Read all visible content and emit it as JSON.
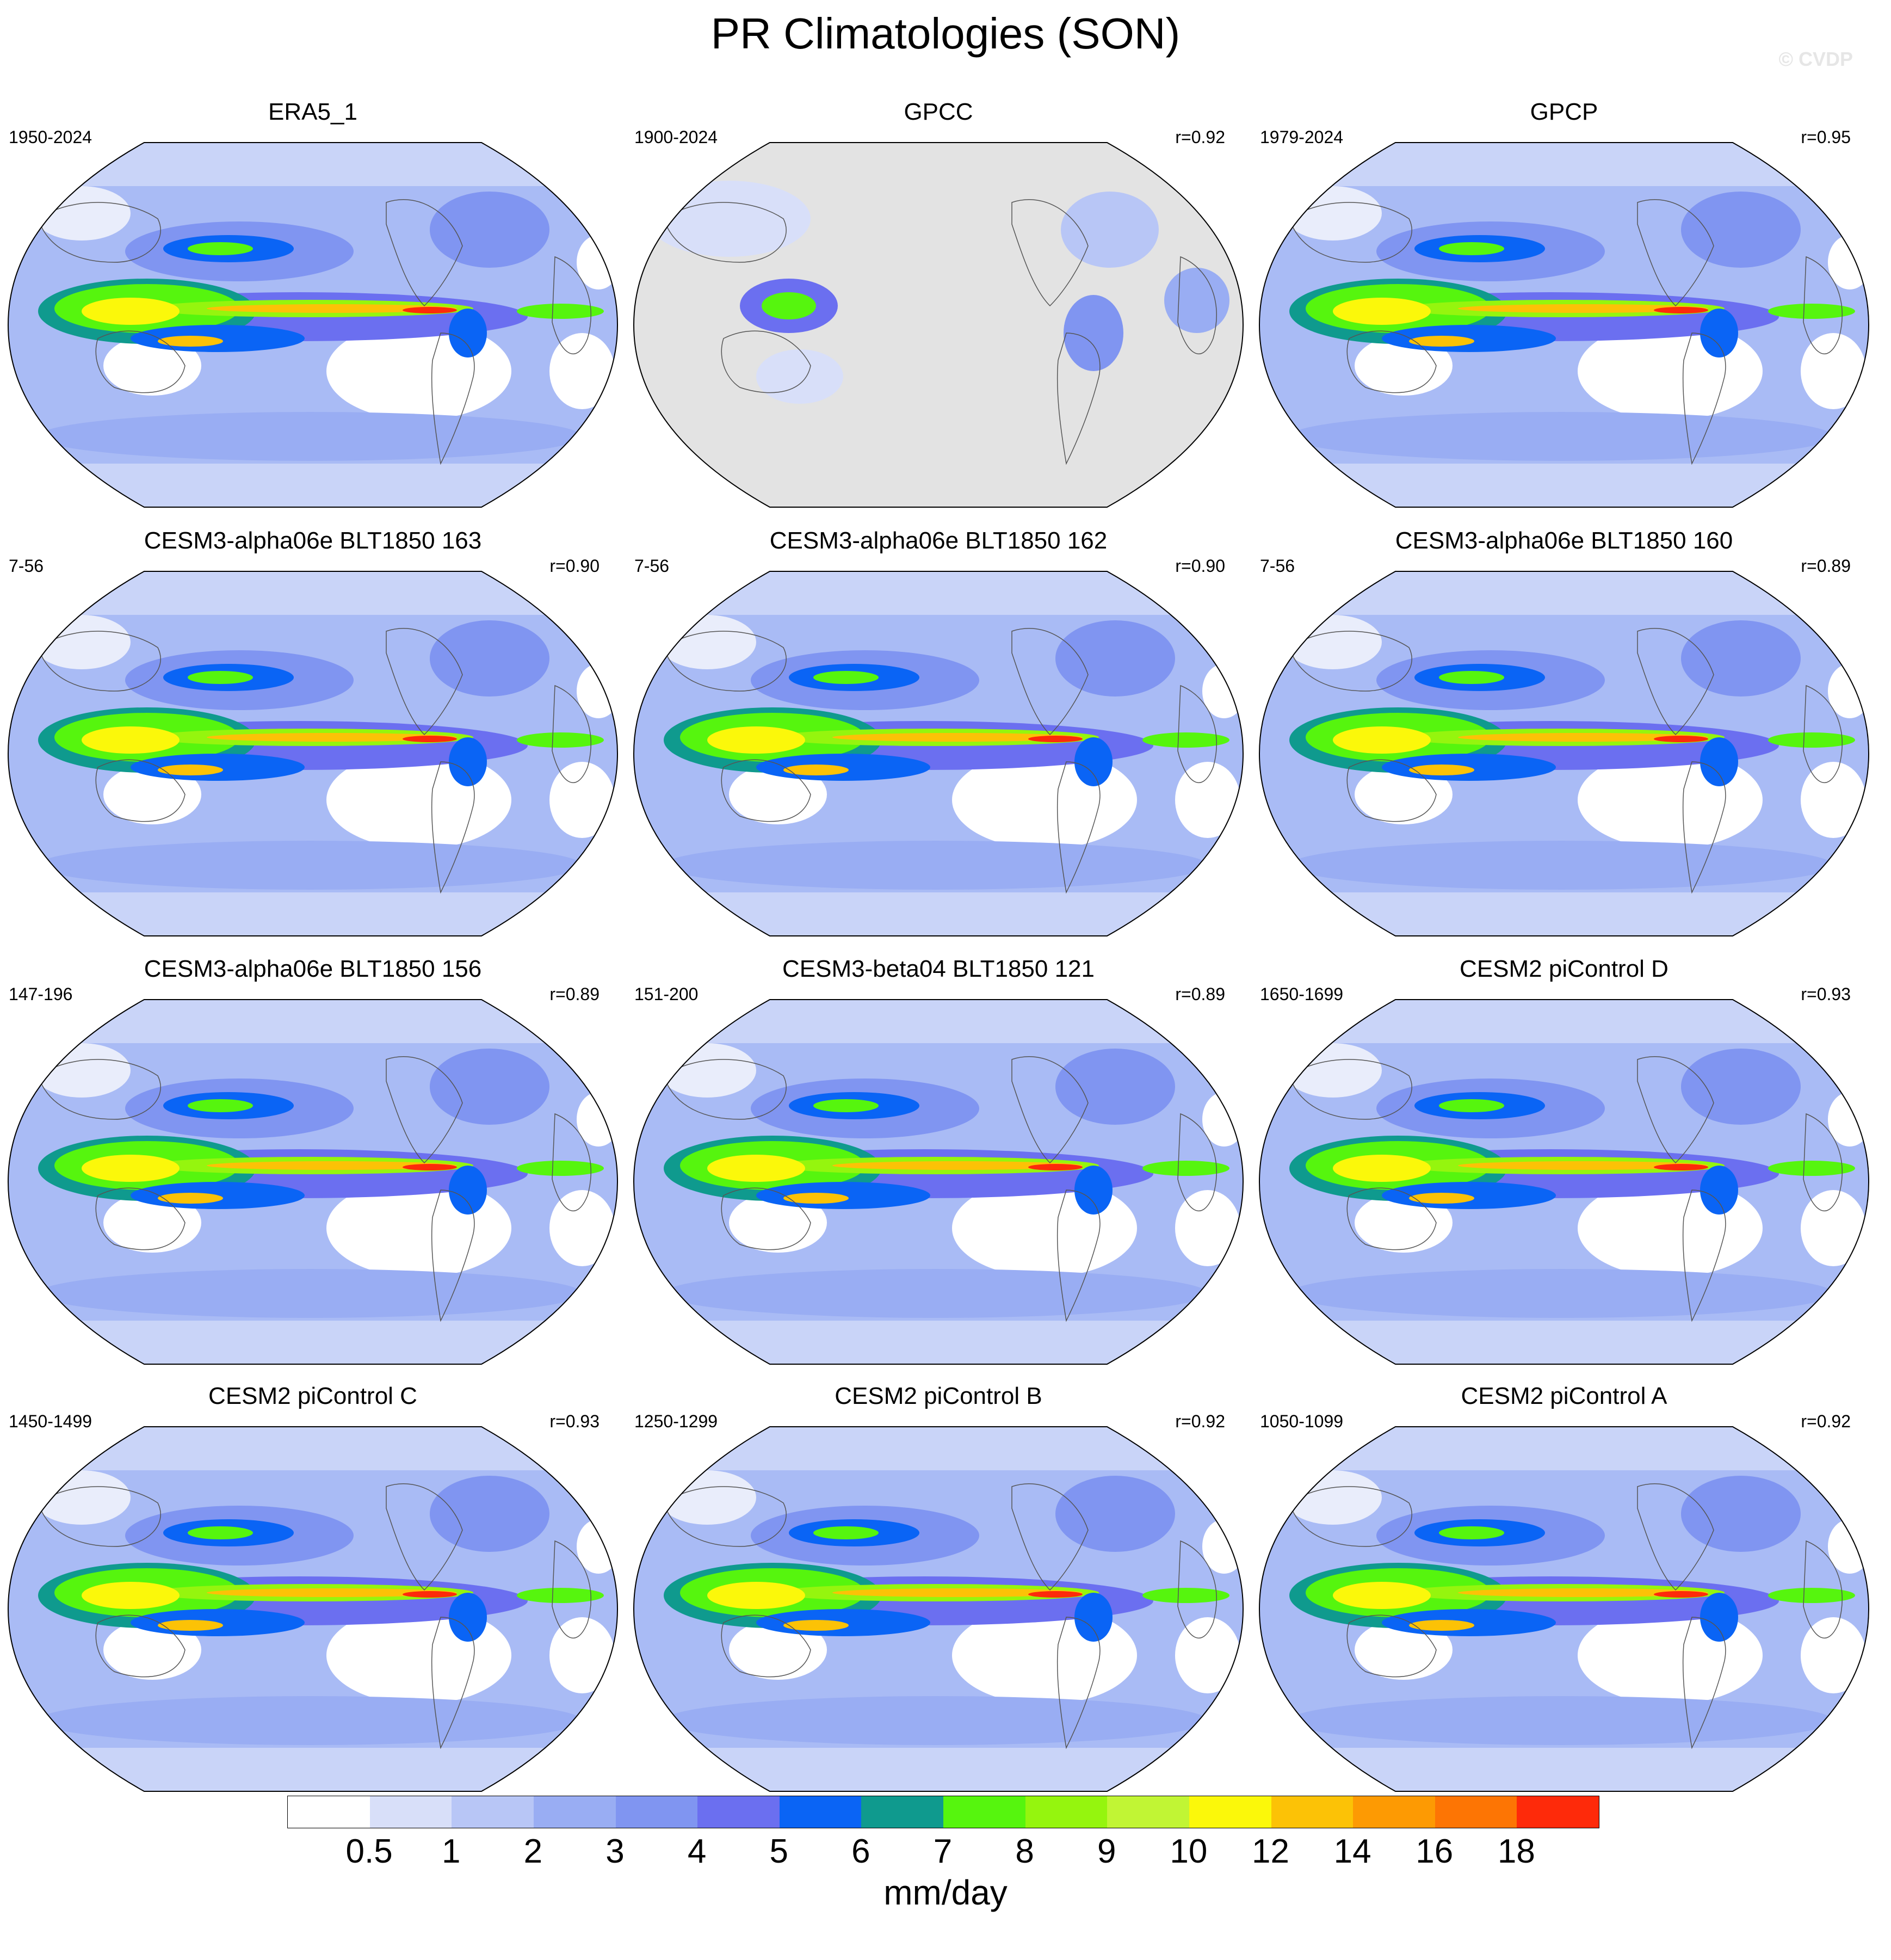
{
  "title": "PR Climatologies (SON)",
  "watermark": "© CVDP",
  "panels": [
    {
      "title": "ERA5_1",
      "period": "1950-2024",
      "r": "",
      "gray_land": false
    },
    {
      "title": "GPCC",
      "period": "1900-2024",
      "r": "r=0.92",
      "gray_land": true
    },
    {
      "title": "GPCP",
      "period": "1979-2024",
      "r": "r=0.95",
      "gray_land": false
    },
    {
      "title": "CESM3-alpha06e BLT1850 163",
      "period": "7-56",
      "r": "r=0.90",
      "gray_land": false
    },
    {
      "title": "CESM3-alpha06e BLT1850 162",
      "period": "7-56",
      "r": "r=0.90",
      "gray_land": false
    },
    {
      "title": "CESM3-alpha06e BLT1850 160",
      "period": "7-56",
      "r": "r=0.89",
      "gray_land": false
    },
    {
      "title": "CESM3-alpha06e BLT1850 156",
      "period": "147-196",
      "r": "r=0.89",
      "gray_land": false
    },
    {
      "title": "CESM3-beta04 BLT1850 121",
      "period": "151-200",
      "r": "r=0.89",
      "gray_land": false
    },
    {
      "title": "CESM2 piControl D",
      "period": "1650-1699",
      "r": "r=0.93",
      "gray_land": false
    },
    {
      "title": "CESM2 piControl C",
      "period": "1450-1499",
      "r": "r=0.93",
      "gray_land": false
    },
    {
      "title": "CESM2 piControl B",
      "period": "1250-1299",
      "r": "r=0.92",
      "gray_land": false
    },
    {
      "title": "CESM2 piControl A",
      "period": "1050-1099",
      "r": "r=0.92",
      "gray_land": false
    }
  ],
  "colorbar": {
    "units": "mm/day",
    "labels": [
      "0.5",
      "1",
      "2",
      "3",
      "4",
      "5",
      "6",
      "7",
      "8",
      "9",
      "10",
      "12",
      "14",
      "16",
      "18"
    ],
    "colors": [
      "#ffffff",
      "#d8dff9",
      "#b8c6f6",
      "#99adf3",
      "#8095f1",
      "#6b6ff0",
      "#0a64f5",
      "#0f9a8e",
      "#56f50e",
      "#95f50e",
      "#c1f534",
      "#fbf80a",
      "#fcc206",
      "#fd9a03",
      "#fd7504",
      "#fe2a0a"
    ]
  }
}
